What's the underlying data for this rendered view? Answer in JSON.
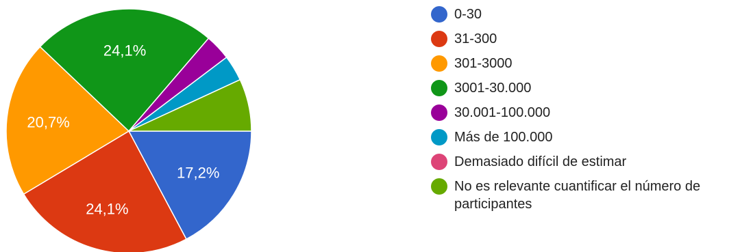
{
  "chart_data": {
    "type": "pie",
    "slices": [
      {
        "label": "0-30",
        "value": 17.2,
        "color": "#3366cc",
        "display": "17,2%"
      },
      {
        "label": "31-300",
        "value": 24.1,
        "color": "#dc3912",
        "display": "24,1%"
      },
      {
        "label": "301-3000",
        "value": 20.7,
        "color": "#ff9900",
        "display": "20,7%"
      },
      {
        "label": "3001-30.000",
        "value": 24.1,
        "color": "#109618",
        "display": "24,1%"
      },
      {
        "label": "30.001-100.000",
        "value": 3.4,
        "color": "#990099",
        "display": ""
      },
      {
        "label": "Más de 100.000",
        "value": 3.4,
        "color": "#0099c6",
        "display": ""
      },
      {
        "label": "Demasiado difícil de estimar",
        "value": 0,
        "color": "#dd4477",
        "display": ""
      },
      {
        "label": "No es relevante cuantificar el número de participantes",
        "value": 6.9,
        "color": "#66aa00",
        "display": ""
      }
    ],
    "start": "3 o'clock",
    "direction": "clockwise",
    "legend_position": "right"
  }
}
